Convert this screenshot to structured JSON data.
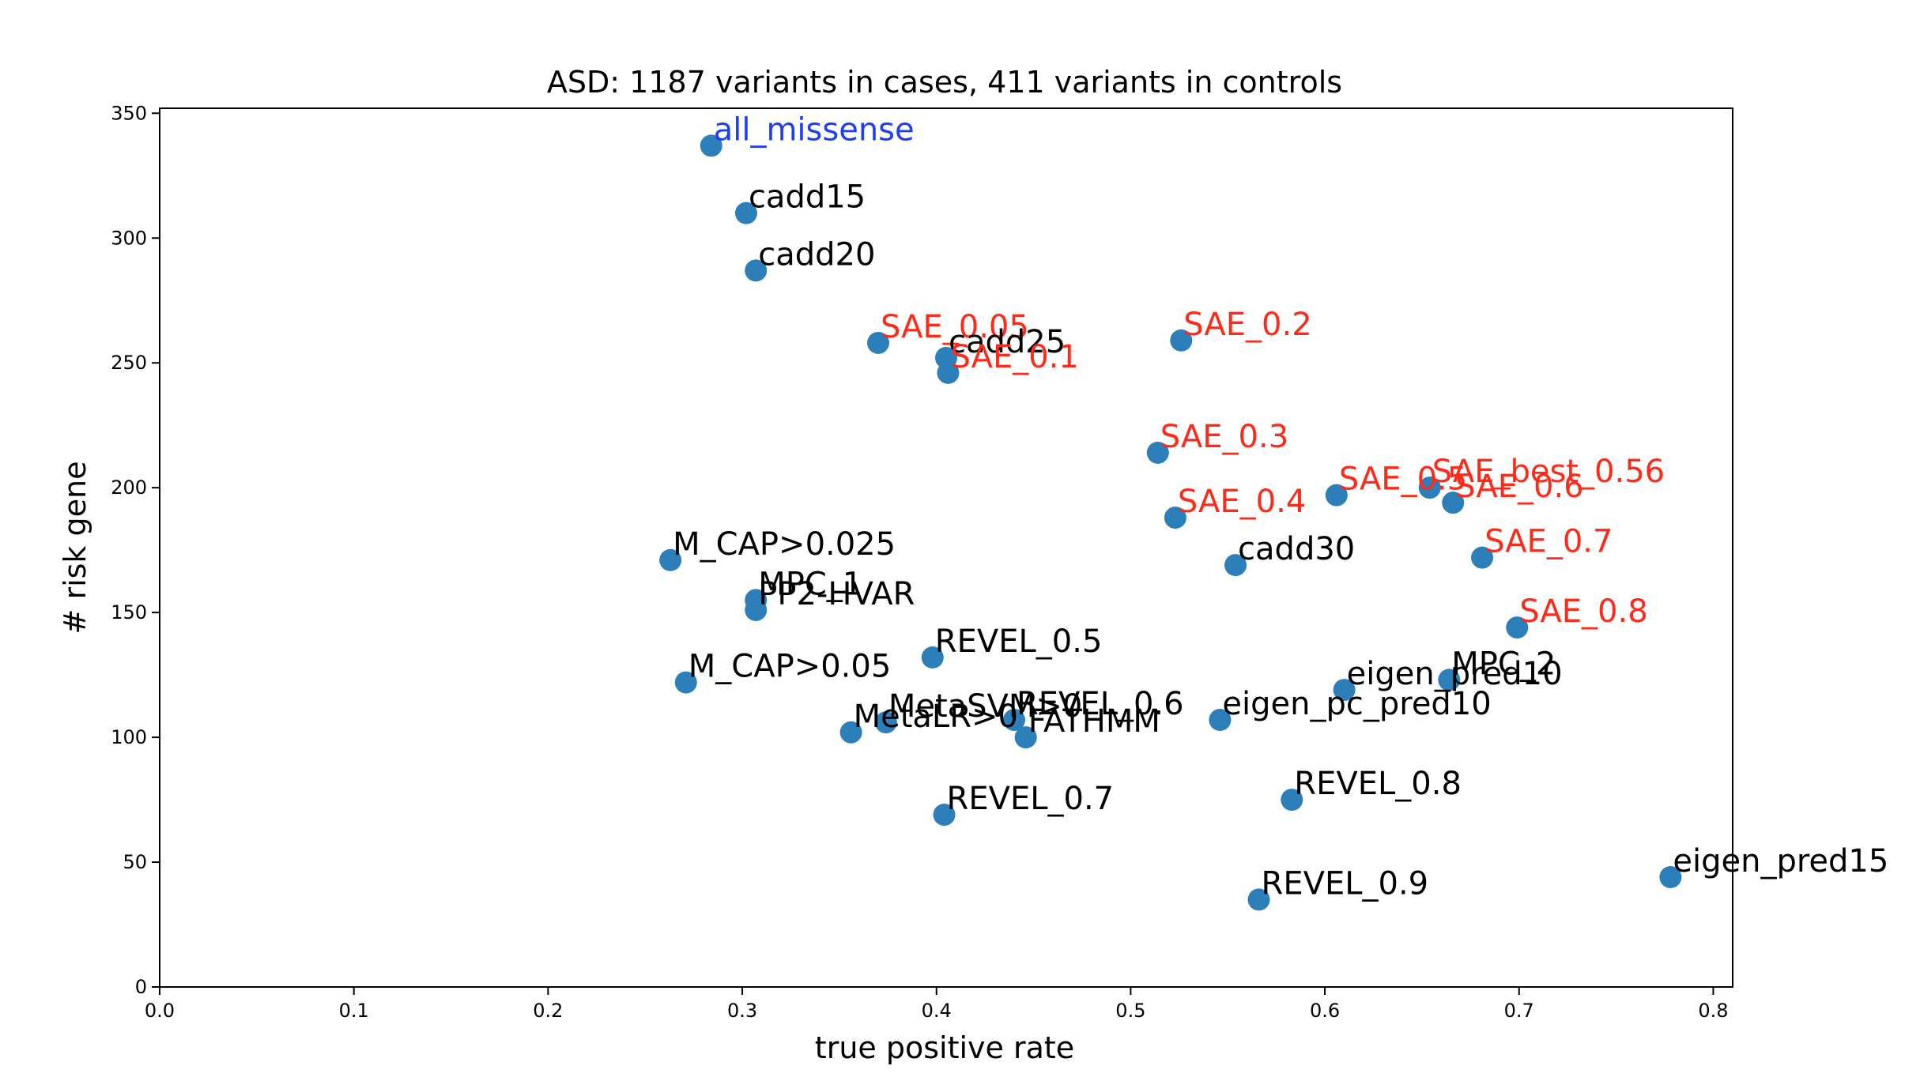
{
  "chart_data": {
    "type": "scatter",
    "title": "ASD: 1187 variants in cases, 411 variants in controls",
    "xlabel": "true positive rate",
    "ylabel": "# risk gene",
    "xlim": [
      0.0,
      0.81
    ],
    "ylim": [
      0,
      352
    ],
    "xticks": [
      "0.0",
      "0.1",
      "0.2",
      "0.3",
      "0.4",
      "0.5",
      "0.6",
      "0.7",
      "0.8"
    ],
    "yticks": [
      "0",
      "50",
      "100",
      "150",
      "200",
      "250",
      "300",
      "350"
    ],
    "grid": false,
    "marker_color": "#2c7fb8",
    "colors": {
      "default": "#000000",
      "sae": "#ff2a1a",
      "baseline": "#1f3df5"
    },
    "points": [
      {
        "label": "all_missense",
        "x": 0.284,
        "y": 337,
        "group": "baseline"
      },
      {
        "label": "cadd15",
        "x": 0.302,
        "y": 310,
        "group": "default"
      },
      {
        "label": "cadd20",
        "x": 0.307,
        "y": 287,
        "group": "default"
      },
      {
        "label": "SAE_0.05",
        "x": 0.37,
        "y": 258,
        "group": "sae"
      },
      {
        "label": "cadd25",
        "x": 0.405,
        "y": 252,
        "group": "default"
      },
      {
        "label": "SAE_0.1",
        "x": 0.406,
        "y": 246,
        "group": "sae"
      },
      {
        "label": "SAE_0.2",
        "x": 0.526,
        "y": 259,
        "group": "sae"
      },
      {
        "label": "SAE_0.3",
        "x": 0.514,
        "y": 214,
        "group": "sae"
      },
      {
        "label": "SAE_0.4",
        "x": 0.523,
        "y": 188,
        "group": "sae"
      },
      {
        "label": "SAE_0.5",
        "x": 0.606,
        "y": 197,
        "group": "sae"
      },
      {
        "label": "SAE_best_0.56",
        "x": 0.654,
        "y": 200,
        "group": "sae"
      },
      {
        "label": "SAE_0.6",
        "x": 0.666,
        "y": 194,
        "group": "sae"
      },
      {
        "label": "SAE_0.7",
        "x": 0.681,
        "y": 172,
        "group": "sae"
      },
      {
        "label": "SAE_0.8",
        "x": 0.699,
        "y": 144,
        "group": "sae"
      },
      {
        "label": "cadd30",
        "x": 0.554,
        "y": 169,
        "group": "default"
      },
      {
        "label": "M_CAP>0.025",
        "x": 0.263,
        "y": 171,
        "group": "default"
      },
      {
        "label": "MPC_1",
        "x": 0.307,
        "y": 155,
        "group": "default"
      },
      {
        "label": "PP2-HVAR",
        "x": 0.307,
        "y": 151,
        "group": "default"
      },
      {
        "label": "M_CAP>0.05",
        "x": 0.271,
        "y": 122,
        "group": "default"
      },
      {
        "label": "REVEL_0.5",
        "x": 0.398,
        "y": 132,
        "group": "default"
      },
      {
        "label": "MetaSVM>0",
        "x": 0.374,
        "y": 106,
        "group": "default"
      },
      {
        "label": "MetaLR>0",
        "x": 0.356,
        "y": 102,
        "group": "default"
      },
      {
        "label": "REVEL_0.6",
        "x": 0.44,
        "y": 107,
        "group": "default"
      },
      {
        "label": "FATHMM",
        "x": 0.446,
        "y": 100,
        "group": "default"
      },
      {
        "label": "eigen_pc_pred10",
        "x": 0.546,
        "y": 107,
        "group": "default"
      },
      {
        "label": "eigen_pred10",
        "x": 0.61,
        "y": 119,
        "group": "default"
      },
      {
        "label": "MPC_2",
        "x": 0.664,
        "y": 123,
        "group": "default"
      },
      {
        "label": "REVEL_0.7",
        "x": 0.404,
        "y": 69,
        "group": "default"
      },
      {
        "label": "REVEL_0.8",
        "x": 0.583,
        "y": 75,
        "group": "default"
      },
      {
        "label": "REVEL_0.9",
        "x": 0.566,
        "y": 35,
        "group": "default"
      },
      {
        "label": "eigen_pred15",
        "x": 0.778,
        "y": 44,
        "group": "default"
      }
    ]
  }
}
